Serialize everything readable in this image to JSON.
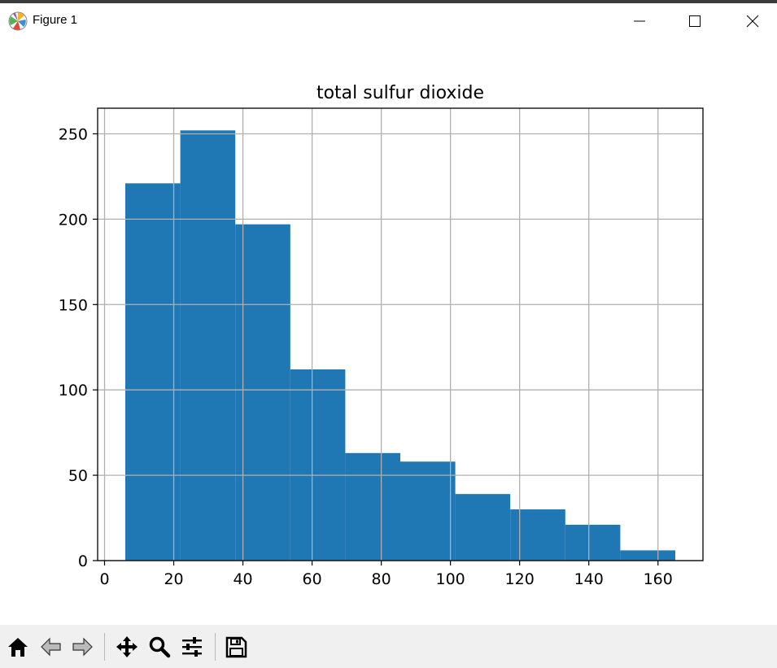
{
  "window": {
    "title": "Figure 1",
    "icons": [
      "matplotlib-logo-icon",
      "minimize-icon",
      "maximize-icon",
      "close-icon"
    ]
  },
  "chart_data": {
    "type": "bar",
    "title": "total sulfur dioxide",
    "xlabel": "",
    "ylabel": "",
    "bins": [
      {
        "x0": 6,
        "x1": 21.9,
        "count": 221
      },
      {
        "x0": 21.9,
        "x1": 37.8,
        "count": 252
      },
      {
        "x0": 37.8,
        "x1": 53.7,
        "count": 197
      },
      {
        "x0": 53.7,
        "x1": 69.6,
        "count": 112
      },
      {
        "x0": 69.6,
        "x1": 85.5,
        "count": 63
      },
      {
        "x0": 85.5,
        "x1": 101.4,
        "count": 58
      },
      {
        "x0": 101.4,
        "x1": 117.3,
        "count": 39
      },
      {
        "x0": 117.3,
        "x1": 133.2,
        "count": 30
      },
      {
        "x0": 133.2,
        "x1": 149.1,
        "count": 21
      },
      {
        "x0": 149.1,
        "x1": 165,
        "count": 6
      }
    ],
    "xlim": [
      -2,
      173
    ],
    "ylim": [
      0,
      265
    ],
    "xticks": [
      0,
      20,
      40,
      60,
      80,
      100,
      120,
      140,
      160
    ],
    "yticks": [
      0,
      50,
      100,
      150,
      200,
      250
    ],
    "grid": true,
    "bar_color": "#1f77b4",
    "grid_color": "#b0b0b0"
  },
  "toolbar": {
    "tools": [
      "home-icon",
      "back-icon",
      "forward-icon",
      "pan-icon",
      "zoom-icon",
      "configure-subplots-icon",
      "save-icon"
    ]
  }
}
